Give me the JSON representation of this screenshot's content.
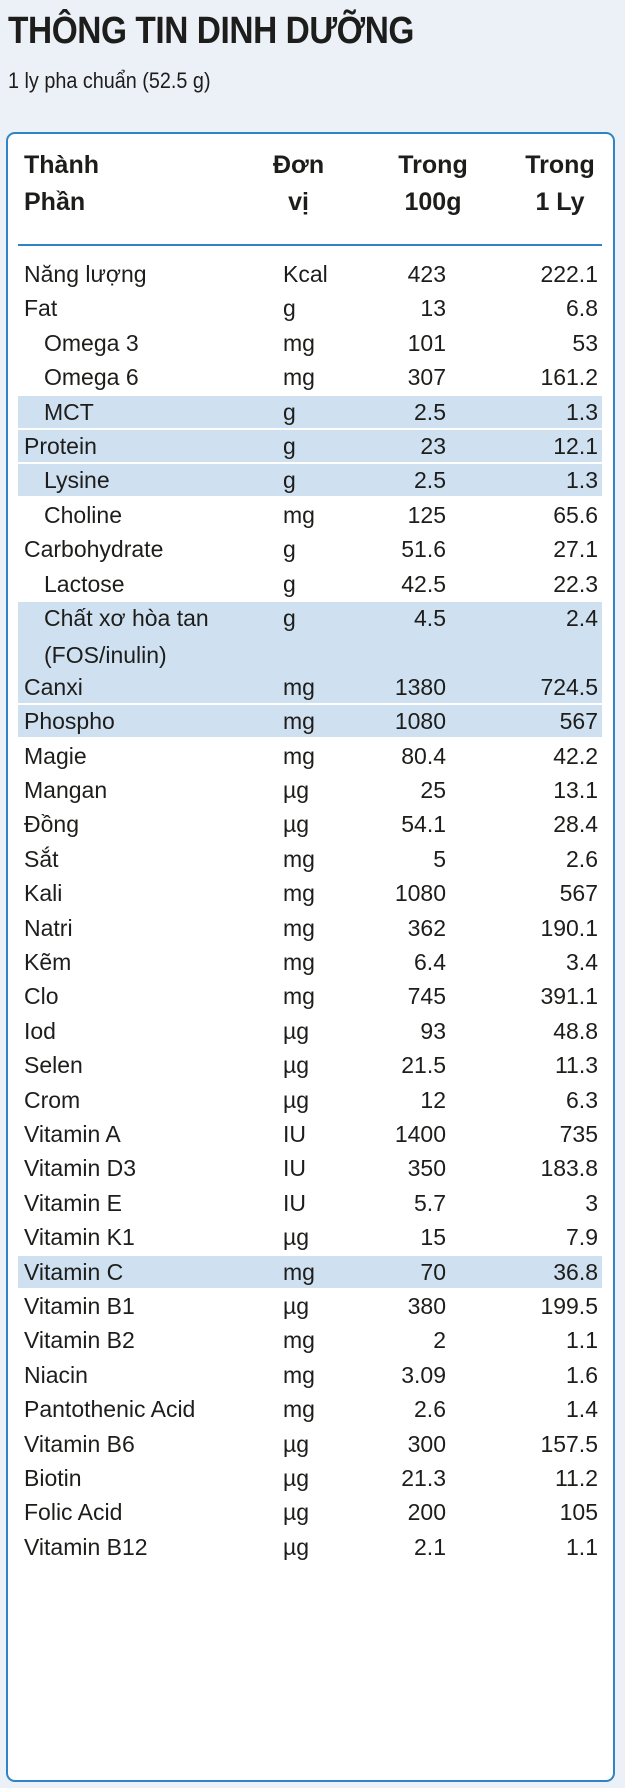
{
  "title": "THÔNG TIN DINH DƯỠNG",
  "subtitle": "1 ly pha chuẩn (52.5 g)",
  "headers": {
    "name": [
      "Thành",
      "Phần"
    ],
    "unit": [
      "Đơn",
      "vị"
    ],
    "per100": [
      "Trong",
      "100g"
    ],
    "perServing": [
      "Trong",
      "1 Ly"
    ]
  },
  "rows": [
    {
      "name": "Năng lượng",
      "unit": "Kcal",
      "per100": "423",
      "perServing": "222.1",
      "indent": false,
      "highlight": false
    },
    {
      "name": "Fat",
      "unit": "g",
      "per100": "13",
      "perServing": "6.8",
      "indent": false,
      "highlight": false
    },
    {
      "name": "Omega 3",
      "unit": "mg",
      "per100": "101",
      "perServing": "53",
      "indent": true,
      "highlight": false
    },
    {
      "name": "Omega 6",
      "unit": "mg",
      "per100": "307",
      "perServing": "161.2",
      "indent": true,
      "highlight": false
    },
    {
      "name": "MCT",
      "unit": "g",
      "per100": "2.5",
      "perServing": "1.3",
      "indent": true,
      "highlight": true
    },
    {
      "name": "Protein",
      "unit": "g",
      "per100": "23",
      "perServing": "12.1",
      "indent": false,
      "highlight": true
    },
    {
      "name": "Lysine",
      "unit": "g",
      "per100": "2.5",
      "perServing": "1.3",
      "indent": true,
      "highlight": true
    },
    {
      "name": "Choline",
      "unit": "mg",
      "per100": "125",
      "perServing": "65.6",
      "indent": true,
      "highlight": false
    },
    {
      "name": "Carbohydrate",
      "unit": "g",
      "per100": "51.6",
      "perServing": "27.1",
      "indent": false,
      "highlight": false
    },
    {
      "name": "Lactose",
      "unit": "g",
      "per100": "42.5",
      "perServing": "22.3",
      "indent": true,
      "highlight": false
    },
    {
      "name": "Chất xơ hòa tan",
      "name2": "(FOS/inulin)",
      "unit": "g",
      "per100": "4.5",
      "perServing": "2.4",
      "indent": true,
      "highlight": true
    },
    {
      "name": "Canxi",
      "unit": "mg",
      "per100": "1380",
      "perServing": "724.5",
      "indent": false,
      "highlight": true
    },
    {
      "name": "Phospho",
      "unit": "mg",
      "per100": "1080",
      "perServing": "567",
      "indent": false,
      "highlight": true
    },
    {
      "name": "Magie",
      "unit": "mg",
      "per100": "80.4",
      "perServing": "42.2",
      "indent": false,
      "highlight": false
    },
    {
      "name": "Mangan",
      "unit": "µg",
      "per100": "25",
      "perServing": "13.1",
      "indent": false,
      "highlight": false
    },
    {
      "name": "Đồng",
      "unit": "µg",
      "per100": "54.1",
      "perServing": "28.4",
      "indent": false,
      "highlight": false
    },
    {
      "name": "Sắt",
      "unit": "mg",
      "per100": "5",
      "perServing": "2.6",
      "indent": false,
      "highlight": false
    },
    {
      "name": "Kali",
      "unit": "mg",
      "per100": "1080",
      "perServing": "567",
      "indent": false,
      "highlight": false
    },
    {
      "name": "Natri",
      "unit": "mg",
      "per100": "362",
      "perServing": "190.1",
      "indent": false,
      "highlight": false
    },
    {
      "name": "Kẽm",
      "unit": "mg",
      "per100": "6.4",
      "perServing": "3.4",
      "indent": false,
      "highlight": false
    },
    {
      "name": "Clo",
      "unit": "mg",
      "per100": "745",
      "perServing": "391.1",
      "indent": false,
      "highlight": false
    },
    {
      "name": "Iod",
      "unit": "µg",
      "per100": "93",
      "perServing": "48.8",
      "indent": false,
      "highlight": false
    },
    {
      "name": "Selen",
      "unit": "µg",
      "per100": "21.5",
      "perServing": "11.3",
      "indent": false,
      "highlight": false
    },
    {
      "name": "Crom",
      "unit": "µg",
      "per100": "12",
      "perServing": "6.3",
      "indent": false,
      "highlight": false
    },
    {
      "name": "Vitamin A",
      "unit": "IU",
      "per100": "1400",
      "perServing": "735",
      "indent": false,
      "highlight": false
    },
    {
      "name": "Vitamin D3",
      "unit": "IU",
      "per100": "350",
      "perServing": "183.8",
      "indent": false,
      "highlight": false
    },
    {
      "name": "Vitamin E",
      "unit": "IU",
      "per100": "5.7",
      "perServing": "3",
      "indent": false,
      "highlight": false
    },
    {
      "name": "Vitamin K1",
      "unit": "µg",
      "per100": "15",
      "perServing": "7.9",
      "indent": false,
      "highlight": false
    },
    {
      "name": "Vitamin C",
      "unit": "mg",
      "per100": "70",
      "perServing": "36.8",
      "indent": false,
      "highlight": true
    },
    {
      "name": "Vitamin B1",
      "unit": "µg",
      "per100": "380",
      "perServing": "199.5",
      "indent": false,
      "highlight": false
    },
    {
      "name": "Vitamin B2",
      "unit": "mg",
      "per100": "2",
      "perServing": "1.1",
      "indent": false,
      "highlight": false
    },
    {
      "name": "Niacin",
      "unit": "mg",
      "per100": "3.09",
      "perServing": "1.6",
      "indent": false,
      "highlight": false
    },
    {
      "name": "Pantothenic Acid",
      "unit": "mg",
      "per100": "2.6",
      "perServing": "1.4",
      "indent": false,
      "highlight": false
    },
    {
      "name": "Vitamin B6",
      "unit": "µg",
      "per100": "300",
      "perServing": "157.5",
      "indent": false,
      "highlight": false
    },
    {
      "name": "Biotin",
      "unit": "µg",
      "per100": "21.3",
      "perServing": "11.2",
      "indent": false,
      "highlight": false
    },
    {
      "name": "Folic Acid",
      "unit": "µg",
      "per100": "200",
      "perServing": "105",
      "indent": false,
      "highlight": false
    },
    {
      "name": "Vitamin B12",
      "unit": "µg",
      "per100": "2.1",
      "perServing": "1.1",
      "indent": false,
      "highlight": false
    }
  ]
}
